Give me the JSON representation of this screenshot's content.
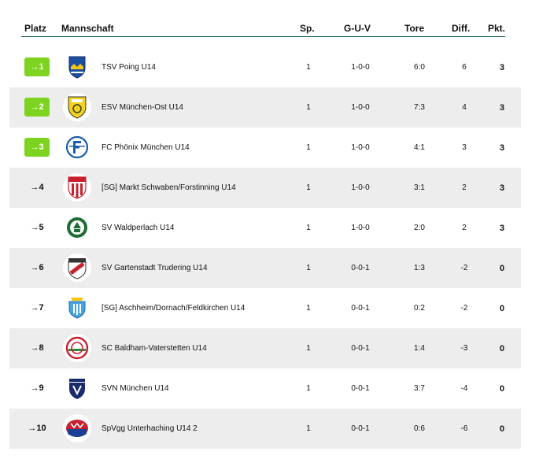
{
  "header": {
    "platz": "Platz",
    "mannschaft": "Mannschaft",
    "sp": "Sp.",
    "guv": "G-U-V",
    "tore": "Tore",
    "diff": "Diff.",
    "pkt": "Pkt."
  },
  "colors": {
    "promotion": "#7ed321",
    "header_line": "#1b6b61",
    "alt_row": "#ededed"
  },
  "rows": [
    {
      "rank": "→1",
      "promoted": true,
      "crest": "tsv-poing-crest-icon",
      "team": "TSV Poing U14",
      "sp": "1",
      "guv": "1-0-0",
      "tore": "6:0",
      "diff": "6",
      "pkt": "3"
    },
    {
      "rank": "→2",
      "promoted": true,
      "crest": "esv-muenchen-ost-crest-icon",
      "team": "ESV München-Ost U14",
      "sp": "1",
      "guv": "1-0-0",
      "tore": "7:3",
      "diff": "4",
      "pkt": "3"
    },
    {
      "rank": "→3",
      "promoted": true,
      "crest": "fc-phoenix-crest-icon",
      "team": "FC Phönix München U14",
      "sp": "1",
      "guv": "1-0-0",
      "tore": "4:1",
      "diff": "3",
      "pkt": "3"
    },
    {
      "rank": "→4",
      "promoted": false,
      "crest": "fcms-crest-icon",
      "team": "[SG] Markt Schwaben/Forstinning U14",
      "sp": "1",
      "guv": "1-0-0",
      "tore": "3:1",
      "diff": "2",
      "pkt": "3"
    },
    {
      "rank": "→5",
      "promoted": false,
      "crest": "sv-waldperlach-crest-icon",
      "team": "SV Waldperlach U14",
      "sp": "1",
      "guv": "1-0-0",
      "tore": "2:0",
      "diff": "2",
      "pkt": "3"
    },
    {
      "rank": "→6",
      "promoted": false,
      "crest": "sv-gartenstadt-crest-icon",
      "team": "SV Gartenstadt Trudering U14",
      "sp": "1",
      "guv": "0-0-1",
      "tore": "1:3",
      "diff": "-2",
      "pkt": "0"
    },
    {
      "rank": "→7",
      "promoted": false,
      "crest": "aschheim-crest-icon",
      "team": "[SG] Aschheim/Dornach/Feldkirchen U14",
      "sp": "1",
      "guv": "0-0-1",
      "tore": "0:2",
      "diff": "-2",
      "pkt": "0"
    },
    {
      "rank": "→8",
      "promoted": false,
      "crest": "sc-baldham-crest-icon",
      "team": "SC Baldham-Vaterstetten U14",
      "sp": "1",
      "guv": "0-0-1",
      "tore": "1:4",
      "diff": "-3",
      "pkt": "0"
    },
    {
      "rank": "→9",
      "promoted": false,
      "crest": "svn-muenchen-crest-icon",
      "team": "SVN München U14",
      "sp": "1",
      "guv": "0-0-1",
      "tore": "3:7",
      "diff": "-4",
      "pkt": "0"
    },
    {
      "rank": "→10",
      "promoted": false,
      "crest": "spvgg-unterhaching-crest-icon",
      "team": "SpVgg Unterhaching U14 2",
      "sp": "1",
      "guv": "0-0-1",
      "tore": "0:6",
      "diff": "-6",
      "pkt": "0"
    }
  ]
}
